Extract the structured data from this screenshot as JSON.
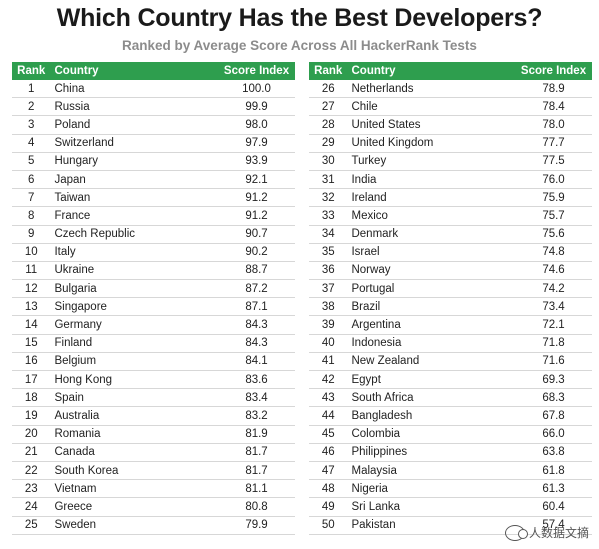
{
  "title": "Which Country Has the Best Developers?",
  "subtitle": "Ranked by Average Score Across All HackerRank Tests",
  "header_color": "#2e9e4e",
  "watermark": "人数据文摘",
  "chart_data": {
    "type": "table",
    "columns": [
      "Rank",
      "Country",
      "Score Index"
    ],
    "rows": [
      [
        1,
        "China",
        "100.0"
      ],
      [
        2,
        "Russia",
        "99.9"
      ],
      [
        3,
        "Poland",
        "98.0"
      ],
      [
        4,
        "Switzerland",
        "97.9"
      ],
      [
        5,
        "Hungary",
        "93.9"
      ],
      [
        6,
        "Japan",
        "92.1"
      ],
      [
        7,
        "Taiwan",
        "91.2"
      ],
      [
        8,
        "France",
        "91.2"
      ],
      [
        9,
        "Czech Republic",
        "90.7"
      ],
      [
        10,
        "Italy",
        "90.2"
      ],
      [
        11,
        "Ukraine",
        "88.7"
      ],
      [
        12,
        "Bulgaria",
        "87.2"
      ],
      [
        13,
        "Singapore",
        "87.1"
      ],
      [
        14,
        "Germany",
        "84.3"
      ],
      [
        15,
        "Finland",
        "84.3"
      ],
      [
        16,
        "Belgium",
        "84.1"
      ],
      [
        17,
        "Hong Kong",
        "83.6"
      ],
      [
        18,
        "Spain",
        "83.4"
      ],
      [
        19,
        "Australia",
        "83.2"
      ],
      [
        20,
        "Romania",
        "81.9"
      ],
      [
        21,
        "Canada",
        "81.7"
      ],
      [
        22,
        "South Korea",
        "81.7"
      ],
      [
        23,
        "Vietnam",
        "81.1"
      ],
      [
        24,
        "Greece",
        "80.8"
      ],
      [
        25,
        "Sweden",
        "79.9"
      ],
      [
        26,
        "Netherlands",
        "78.9"
      ],
      [
        27,
        "Chile",
        "78.4"
      ],
      [
        28,
        "United States",
        "78.0"
      ],
      [
        29,
        "United Kingdom",
        "77.7"
      ],
      [
        30,
        "Turkey",
        "77.5"
      ],
      [
        31,
        "India",
        "76.0"
      ],
      [
        32,
        "Ireland",
        "75.9"
      ],
      [
        33,
        "Mexico",
        "75.7"
      ],
      [
        34,
        "Denmark",
        "75.6"
      ],
      [
        35,
        "Israel",
        "74.8"
      ],
      [
        36,
        "Norway",
        "74.6"
      ],
      [
        37,
        "Portugal",
        "74.2"
      ],
      [
        38,
        "Brazil",
        "73.4"
      ],
      [
        39,
        "Argentina",
        "72.1"
      ],
      [
        40,
        "Indonesia",
        "71.8"
      ],
      [
        41,
        "New Zealand",
        "71.6"
      ],
      [
        42,
        "Egypt",
        "69.3"
      ],
      [
        43,
        "South Africa",
        "68.3"
      ],
      [
        44,
        "Bangladesh",
        "67.8"
      ],
      [
        45,
        "Colombia",
        "66.0"
      ],
      [
        46,
        "Philippines",
        "63.8"
      ],
      [
        47,
        "Malaysia",
        "61.8"
      ],
      [
        48,
        "Nigeria",
        "61.3"
      ],
      [
        49,
        "Sri Lanka",
        "60.4"
      ],
      [
        50,
        "Pakistan",
        "57.4"
      ]
    ]
  }
}
